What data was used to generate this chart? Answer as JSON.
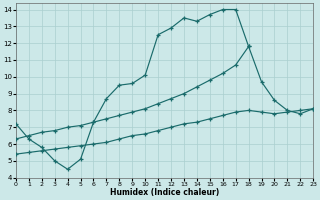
{
  "xlabel": "Humidex (Indice chaleur)",
  "bg_color": "#cce8e8",
  "grid_color": "#aacfcf",
  "line_color": "#1a6b6b",
  "xlim": [
    0,
    23
  ],
  "ylim": [
    4,
    14.4
  ],
  "xtick_labels": [
    "0",
    "1",
    "2",
    "3",
    "4",
    "5",
    "6",
    "7",
    "8",
    "9",
    "10",
    "11",
    "12",
    "13",
    "14",
    "15",
    "16",
    "17",
    "18",
    "19",
    "20",
    "21",
    "22",
    "23"
  ],
  "xticks": [
    0,
    1,
    2,
    3,
    4,
    5,
    6,
    7,
    8,
    9,
    10,
    11,
    12,
    13,
    14,
    15,
    16,
    17,
    18,
    19,
    20,
    21,
    22,
    23
  ],
  "yticks": [
    4,
    5,
    6,
    7,
    8,
    9,
    10,
    11,
    12,
    13,
    14
  ],
  "main_x": [
    0,
    1,
    2,
    3,
    4,
    5,
    6,
    7,
    8,
    9,
    10,
    11,
    12,
    13,
    14,
    15,
    16,
    17,
    18
  ],
  "main_y": [
    7.2,
    6.3,
    5.8,
    5.0,
    4.5,
    5.1,
    7.3,
    8.7,
    9.5,
    9.6,
    10.1,
    12.5,
    12.9,
    13.5,
    13.3,
    13.7,
    14.0,
    14.0,
    11.8
  ],
  "upper_x": [
    0,
    1,
    2,
    3,
    4,
    5,
    6,
    7,
    8,
    9,
    10,
    11,
    12,
    13,
    14,
    15,
    16,
    17,
    18,
    19,
    20,
    21,
    22,
    23
  ],
  "upper_y": [
    6.3,
    6.5,
    6.7,
    6.8,
    7.0,
    7.1,
    7.3,
    7.5,
    7.7,
    7.9,
    8.1,
    8.4,
    8.7,
    9.0,
    9.4,
    9.8,
    10.2,
    10.7,
    11.8,
    9.7,
    8.6,
    8.0,
    7.8,
    8.1
  ],
  "lower_x": [
    0,
    1,
    2,
    3,
    4,
    5,
    6,
    7,
    8,
    9,
    10,
    11,
    12,
    13,
    14,
    15,
    16,
    17,
    18,
    19,
    20,
    21,
    22,
    23
  ],
  "lower_y": [
    5.4,
    5.5,
    5.6,
    5.7,
    5.8,
    5.9,
    6.0,
    6.1,
    6.3,
    6.5,
    6.6,
    6.8,
    7.0,
    7.2,
    7.3,
    7.5,
    7.7,
    7.9,
    8.0,
    7.9,
    7.8,
    7.9,
    8.0,
    8.1
  ]
}
